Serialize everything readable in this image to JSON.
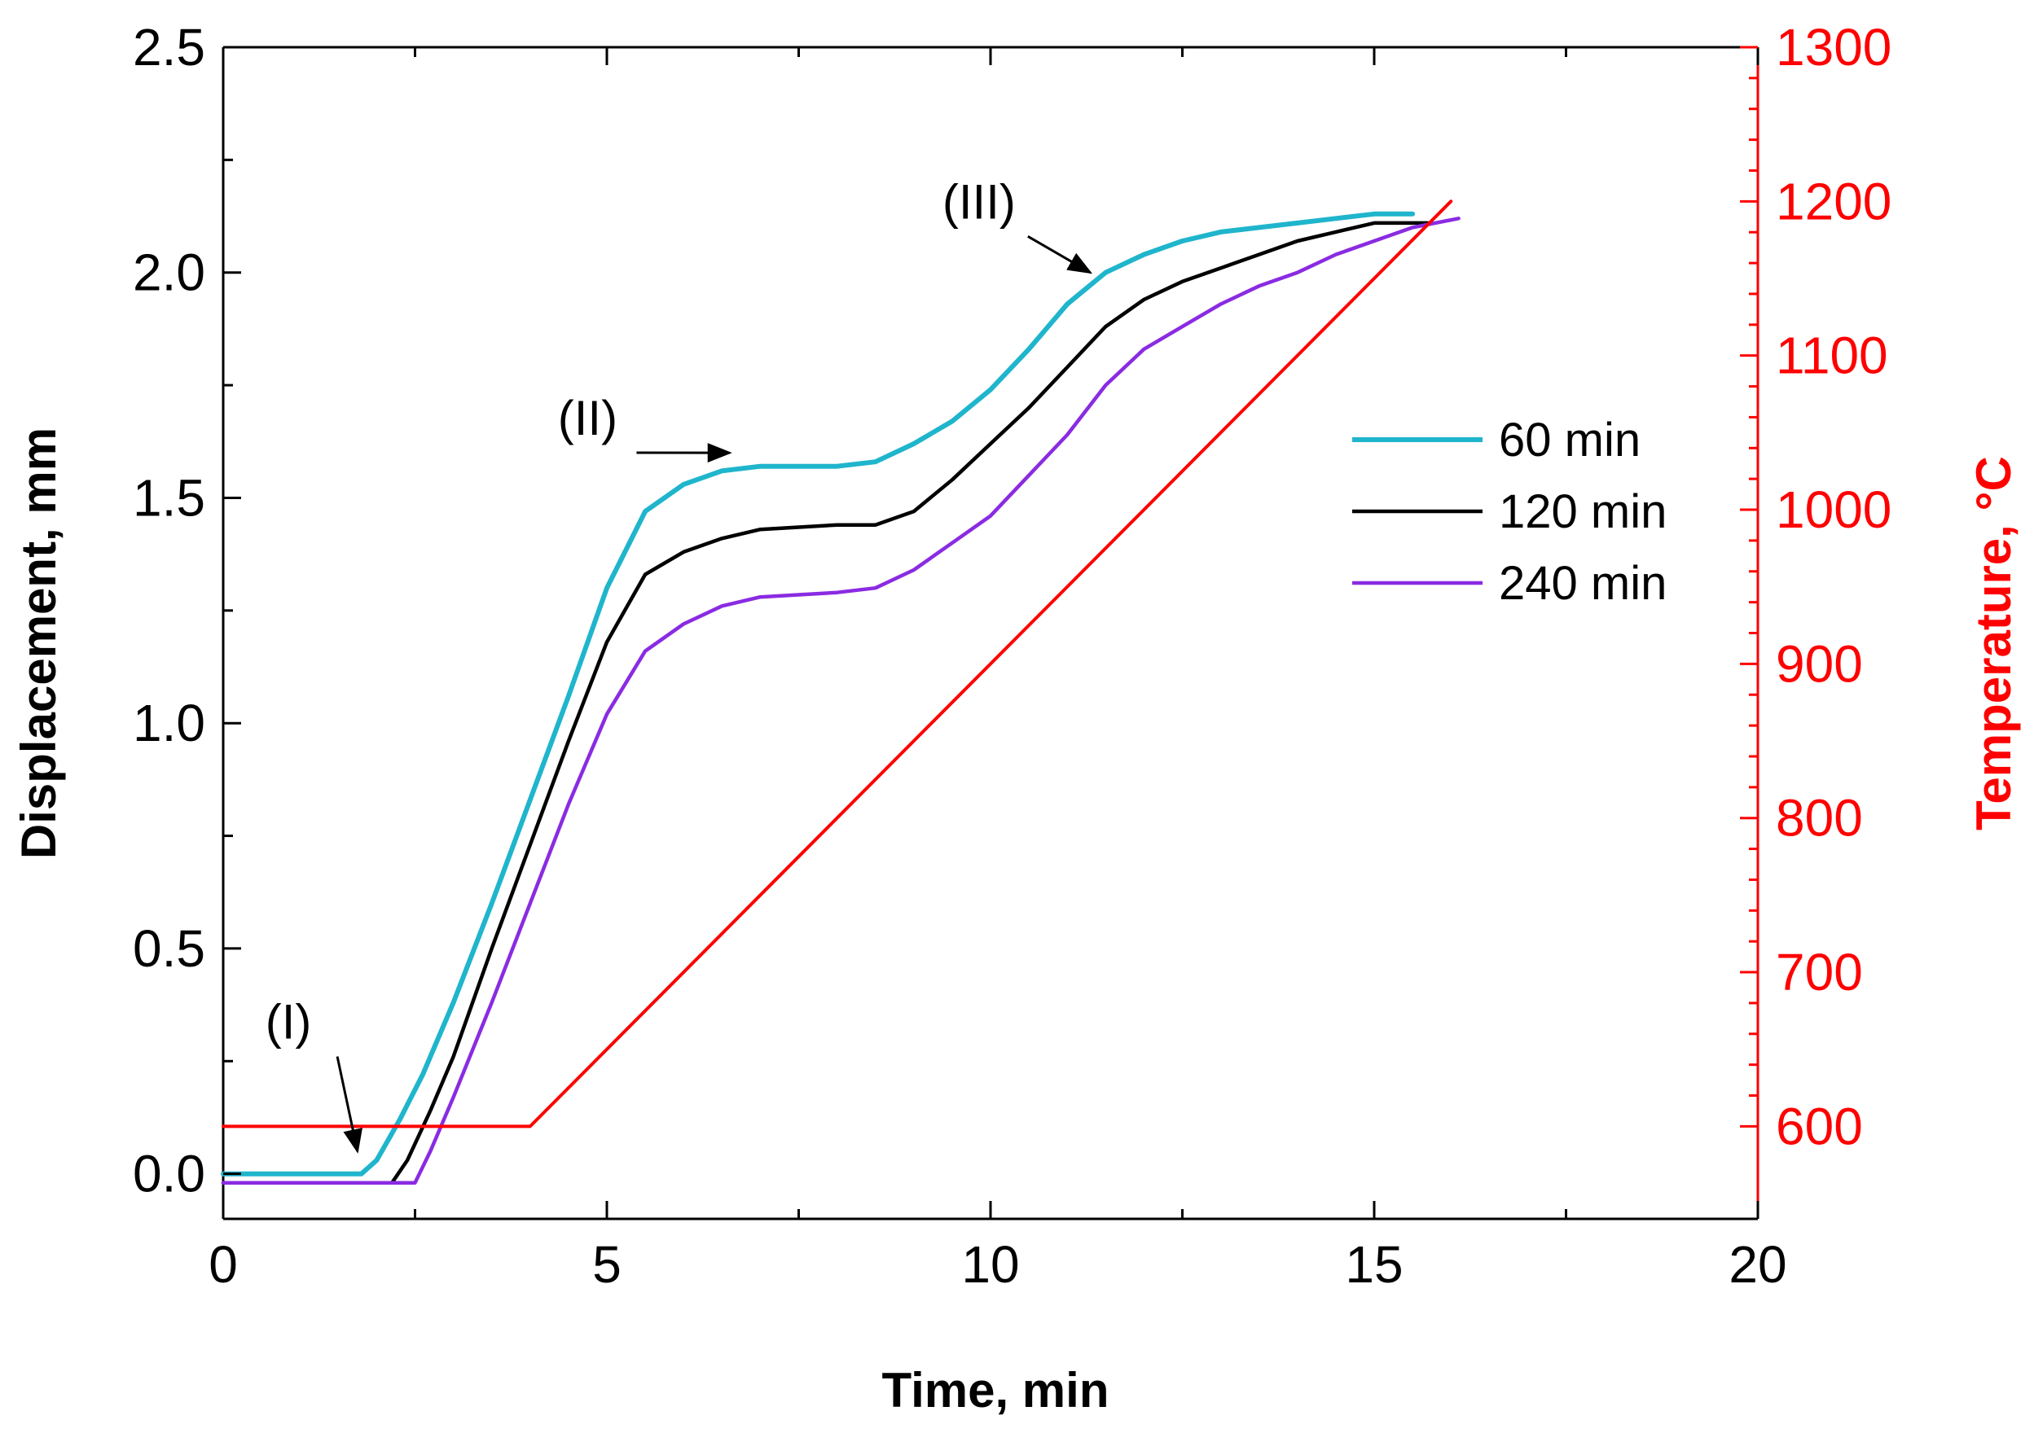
{
  "chart_data": {
    "type": "line",
    "title": "",
    "xlabel": "Time, min",
    "ylabel": "Displacement, mm",
    "y2label": "Temperature, °C",
    "xlim": [
      0,
      20
    ],
    "ylim": [
      -0.1,
      2.5
    ],
    "y2lim": [
      540,
      1300
    ],
    "xticks": [
      0,
      5,
      10,
      15,
      20
    ],
    "xtick_labels": [
      "0",
      "5",
      "10",
      "15",
      "20"
    ],
    "yticks": [
      0.0,
      0.5,
      1.0,
      1.5,
      2.0,
      2.5
    ],
    "ytick_labels": [
      "0.0",
      "0.5",
      "1.0",
      "1.5",
      "2.0",
      "2.5"
    ],
    "y2ticks": [
      600,
      700,
      800,
      900,
      1000,
      1100,
      1200,
      1300
    ],
    "y2tick_labels": [
      "600",
      "700",
      "800",
      "900",
      "1000",
      "1100",
      "1200",
      "1300"
    ],
    "grid": false,
    "legend_position": "right-middle",
    "series": [
      {
        "name": "60 min",
        "axis": "left",
        "color": "#1fb5cc",
        "x": [
          0,
          1.8,
          2.0,
          2.3,
          2.6,
          3.0,
          3.5,
          4.0,
          4.5,
          5.0,
          5.5,
          6.0,
          6.5,
          7.0,
          8.0,
          8.5,
          9.0,
          9.5,
          10.0,
          10.5,
          11.0,
          11.5,
          12.0,
          12.5,
          13.0,
          13.5,
          14.0,
          14.5,
          15.0,
          15.5
        ],
        "values": [
          0.0,
          0.0,
          0.03,
          0.12,
          0.22,
          0.38,
          0.6,
          0.83,
          1.06,
          1.3,
          1.47,
          1.53,
          1.56,
          1.57,
          1.57,
          1.58,
          1.62,
          1.67,
          1.74,
          1.83,
          1.93,
          2.0,
          2.04,
          2.07,
          2.09,
          2.1,
          2.11,
          2.12,
          2.13,
          2.13
        ]
      },
      {
        "name": "120 min",
        "axis": "left",
        "color": "#000000",
        "x": [
          0,
          2.2,
          2.4,
          2.7,
          3.0,
          3.5,
          4.0,
          4.5,
          5.0,
          5.5,
          6.0,
          6.5,
          7.0,
          8.0,
          8.5,
          9.0,
          9.5,
          10.0,
          10.5,
          11.0,
          11.5,
          12.0,
          12.5,
          13.0,
          13.5,
          14.0,
          14.5,
          15.0,
          15.7
        ],
        "values": [
          -0.02,
          -0.02,
          0.03,
          0.14,
          0.26,
          0.5,
          0.73,
          0.96,
          1.18,
          1.33,
          1.38,
          1.41,
          1.43,
          1.44,
          1.44,
          1.47,
          1.54,
          1.62,
          1.7,
          1.79,
          1.88,
          1.94,
          1.98,
          2.01,
          2.04,
          2.07,
          2.09,
          2.11,
          2.11
        ]
      },
      {
        "name": "240 min",
        "axis": "left",
        "color": "#8a2be2",
        "x": [
          0,
          2.5,
          2.7,
          3.0,
          3.5,
          4.0,
          4.5,
          5.0,
          5.5,
          6.0,
          6.5,
          7.0,
          8.0,
          8.5,
          9.0,
          9.5,
          10.0,
          10.5,
          11.0,
          11.5,
          12.0,
          12.5,
          13.0,
          13.5,
          14.0,
          14.5,
          15.0,
          15.5,
          16.1
        ],
        "values": [
          -0.02,
          -0.02,
          0.05,
          0.17,
          0.38,
          0.6,
          0.82,
          1.02,
          1.16,
          1.22,
          1.26,
          1.28,
          1.29,
          1.3,
          1.34,
          1.4,
          1.46,
          1.55,
          1.64,
          1.75,
          1.83,
          1.88,
          1.93,
          1.97,
          2.0,
          2.04,
          2.07,
          2.1,
          2.12
        ]
      },
      {
        "name": "Temperature",
        "axis": "right",
        "color": "#ff0000",
        "x": [
          0,
          4.0,
          16.0
        ],
        "values": [
          600,
          600,
          1200
        ]
      }
    ],
    "annotations": [
      {
        "text": "(I)",
        "x": 0.85,
        "y": 0.3,
        "arrow_to": [
          1.75,
          0.05
        ]
      },
      {
        "text": "(II)",
        "x": 4.75,
        "y": 1.64,
        "arrow_to": [
          6.6,
          1.6
        ]
      },
      {
        "text": "(III)",
        "x": 9.85,
        "y": 2.12,
        "arrow_to": [
          11.3,
          2.0
        ]
      }
    ]
  }
}
